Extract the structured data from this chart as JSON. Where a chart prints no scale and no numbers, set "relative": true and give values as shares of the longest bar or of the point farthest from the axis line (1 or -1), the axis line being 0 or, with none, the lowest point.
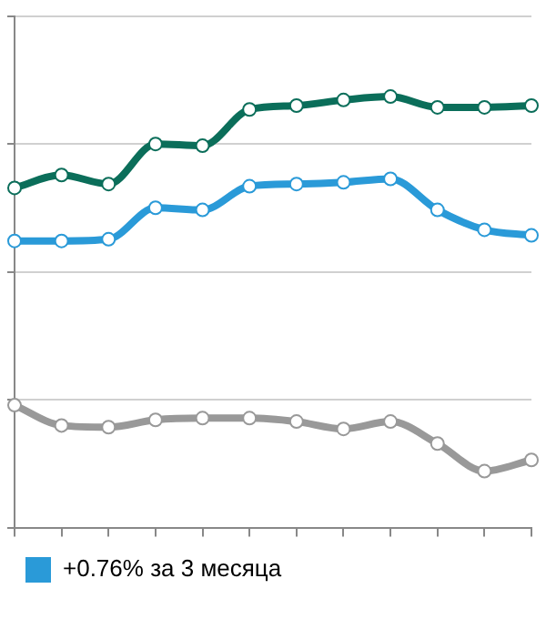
{
  "chart_data": {
    "type": "line",
    "relative": true,
    "categories": [
      null,
      null,
      null,
      null,
      null,
      null,
      null,
      null,
      null,
      null,
      null,
      null
    ],
    "series": [
      {
        "color": "#0b6e5a",
        "values": [
          0.788,
          0.818,
          0.797,
          0.89,
          0.886,
          0.97,
          0.979,
          0.992,
          1,
          0.975,
          0.975,
          0.979
        ]
      },
      {
        "name": "+0.76% за 3 месяца",
        "color": "#2a9ad8",
        "values": [
          0.665,
          0.665,
          0.669,
          0.742,
          0.737,
          0.792,
          0.797,
          0.801,
          0.809,
          0.737,
          0.691,
          0.678
        ]
      },
      {
        "color": "#999999",
        "values": [
          0.284,
          0.237,
          0.233,
          0.25,
          0.254,
          0.254,
          0.246,
          0.229,
          0.246,
          0.195,
          0.131,
          0.157
        ]
      }
    ],
    "grid": "y",
    "legend": "bottom",
    "marker": "circle",
    "line_style": "solid"
  }
}
